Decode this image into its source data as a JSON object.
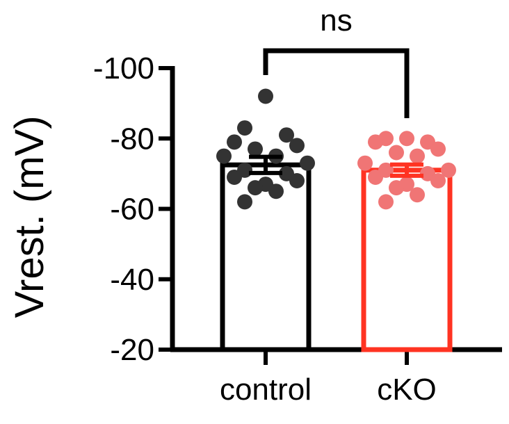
{
  "chart_data": {
    "type": "bar",
    "categories": [
      "control",
      "cKO"
    ],
    "ylabel": "Vrest. (mV)",
    "ylim": [
      -20,
      -100
    ],
    "y_ticks": [
      -100,
      -80,
      -60,
      -40,
      -20
    ],
    "y_tick_labels": [
      "-100",
      "-80",
      "-60",
      "-40",
      "-20"
    ],
    "grid": false,
    "significance": {
      "label": "ns",
      "between": [
        "control",
        "cKO"
      ]
    },
    "series": [
      {
        "category": "control",
        "mean": -72.5,
        "sem": 2.3,
        "color": "#000000",
        "point_color": "#333333",
        "points": [
          -92,
          -83,
          -81,
          -79,
          -78,
          -77,
          -75,
          -75,
          -73,
          -71,
          -70,
          -69,
          -68,
          -67,
          -66,
          -65,
          -62
        ]
      },
      {
        "category": "cKO",
        "mean": -71,
        "sem": 1.6,
        "color": "#ff3322",
        "point_color": "#f07575",
        "points": [
          -80,
          -80,
          -79,
          -79,
          -77,
          -76,
          -75,
          -73,
          -71,
          -71,
          -70,
          -69,
          -68,
          -67,
          -66,
          -64,
          -62
        ]
      }
    ]
  }
}
